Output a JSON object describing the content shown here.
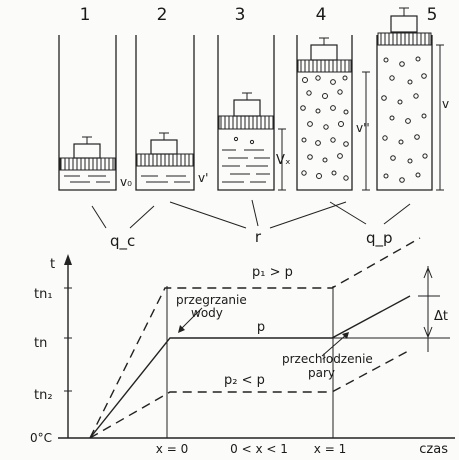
{
  "cylinders": {
    "numbers": [
      "1",
      "2",
      "3",
      "4",
      "5"
    ],
    "volume_labels": [
      "v₀",
      "v'",
      "Vₓ",
      "v''",
      "v"
    ]
  },
  "heat_labels": {
    "q_c": "q_c",
    "r": "r",
    "q_p": "q_p"
  },
  "graph": {
    "y_axis_label": "t",
    "x_axis_label": "czas",
    "y_ticks": [
      "tn₁",
      "tn",
      "tn₂",
      "0°C"
    ],
    "x_ticks": [
      "x = 0",
      "0 < x < 1",
      "x = 1"
    ],
    "curve_labels": {
      "p1": "p₁ > p",
      "p": "p",
      "p2": "p₂ < p"
    },
    "annotations": {
      "superheating_line1": "przegrzanie",
      "superheating_line2": "wody",
      "subcooling_line1": "przechłodzenie",
      "subcooling_line2": "pary",
      "delta_t": "Δt"
    }
  }
}
